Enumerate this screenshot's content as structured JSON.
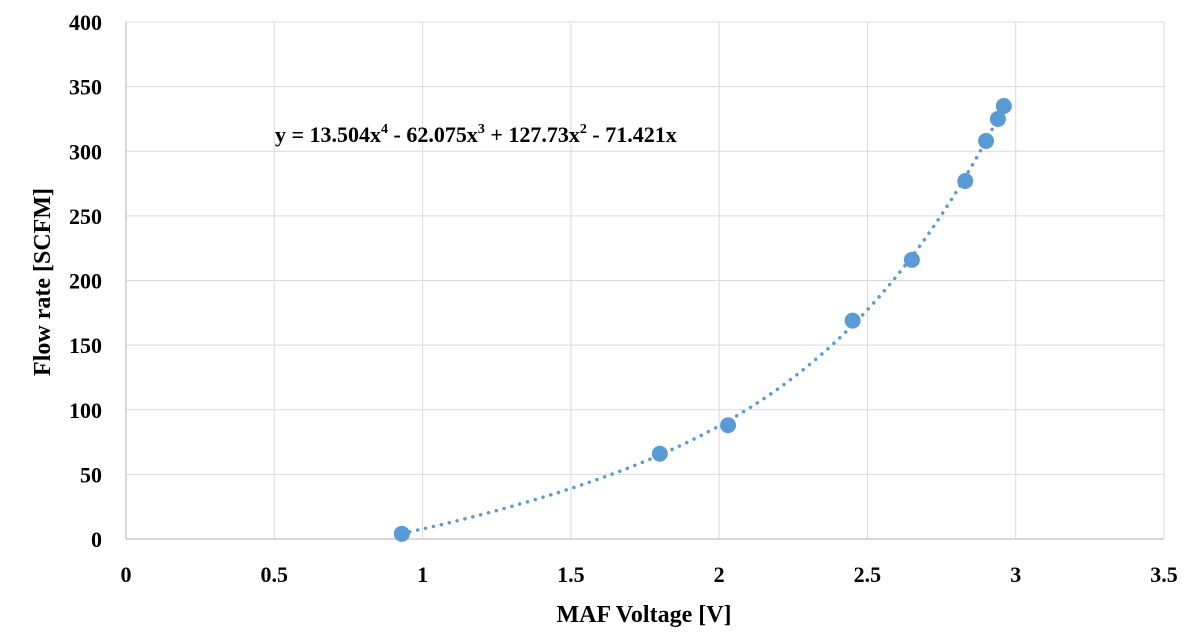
{
  "chart_data": {
    "type": "scatter",
    "xlabel": "MAF Voltage [V]",
    "ylabel": "Flow rate [SCFM]",
    "xlim": [
      0,
      3.5
    ],
    "ylim": [
      0,
      400
    ],
    "x_ticks": [
      "0",
      "0.5",
      "1",
      "1.5",
      "2",
      "2.5",
      "3",
      "3.5"
    ],
    "y_ticks": [
      "0",
      "50",
      "100",
      "150",
      "200",
      "250",
      "300",
      "350",
      "400"
    ],
    "grid": true,
    "legend": "none",
    "series": [
      {
        "points": [
          {
            "x": 0.93,
            "y": 4
          },
          {
            "x": 1.8,
            "y": 66
          },
          {
            "x": 2.03,
            "y": 88
          },
          {
            "x": 2.45,
            "y": 169
          },
          {
            "x": 2.65,
            "y": 216
          },
          {
            "x": 2.83,
            "y": 277
          },
          {
            "x": 2.9,
            "y": 308
          },
          {
            "x": 2.94,
            "y": 325
          },
          {
            "x": 2.96,
            "y": 335
          }
        ],
        "color": "#5b9bd5"
      }
    ],
    "trendline": {
      "type": "polynomial",
      "style": "dotted",
      "color": "#5b9bd5",
      "coefficients": {
        "x4": 13.504,
        "x3": -62.075,
        "x2": 127.73,
        "x1": -71.421,
        "x0": 0
      },
      "equation": {
        "lead": "y = 13.504x",
        "exp1": "4",
        "mid1": " - 62.075x",
        "exp2": "3",
        "mid2": " + 127.73x",
        "exp3": "2",
        "tail": " - 71.421x"
      }
    }
  }
}
